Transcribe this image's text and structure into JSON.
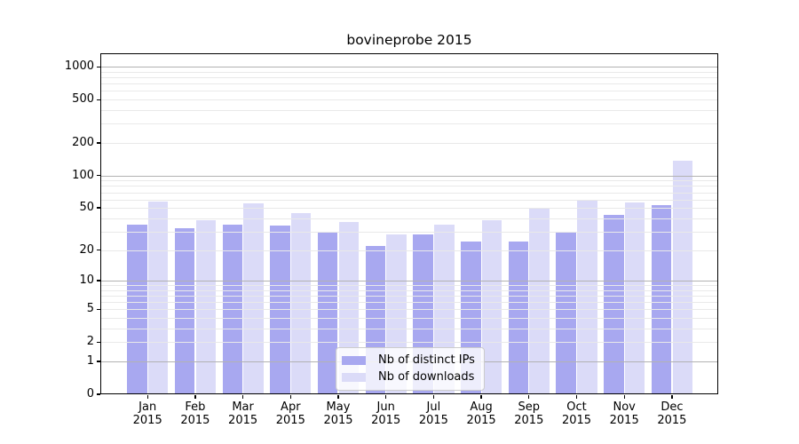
{
  "figure_title": "bovineprobe 2015",
  "colors": {
    "series_ips": "#a8a8f0",
    "series_downloads": "#dbdbf8",
    "grid_major": "#b2b2b2",
    "grid_minor": "#e9e9e9",
    "frame": "#000000",
    "legend_border": "#cccccc"
  },
  "chart_data": {
    "type": "bar",
    "title": "bovineprobe 2015",
    "categories": [
      "Jan 2015",
      "Feb 2015",
      "Mar 2015",
      "Apr 2015",
      "May 2015",
      "Jun 2015",
      "Jul 2015",
      "Aug 2015",
      "Sep 2015",
      "Oct 2015",
      "Nov 2015",
      "Dec 2015"
    ],
    "series": [
      {
        "name": "Nb of distinct IPs",
        "color": "#a8a8f0",
        "values": [
          35,
          32,
          35,
          34,
          29,
          22,
          28,
          24,
          24,
          29,
          43,
          53
        ]
      },
      {
        "name": "Nb of downloads",
        "color": "#dbdbf8",
        "values": [
          57,
          38,
          55,
          45,
          37,
          28,
          35,
          38,
          49,
          58,
          56,
          137
        ]
      }
    ],
    "xlabel": "",
    "ylabel": "",
    "yscale": "log1p",
    "yticks": [
      0,
      1,
      2,
      5,
      10,
      20,
      50,
      100,
      200,
      500,
      1000
    ],
    "ylim": [
      0,
      1330
    ],
    "grid": "horizontal major+minor",
    "legend_position": "lower center inside plot"
  }
}
